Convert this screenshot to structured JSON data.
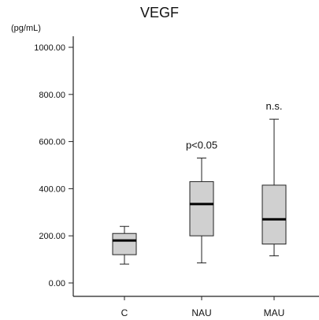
{
  "chart_data": {
    "type": "box",
    "title": "VEGF",
    "unit_label": "(pg/mL)",
    "ylim": [
      0,
      1000
    ],
    "yticks": [
      0,
      200,
      400,
      600,
      800,
      1000
    ],
    "ytick_labels": [
      "0.00",
      "200.00",
      "400.00",
      "600.00",
      "800.00",
      "1000.00"
    ],
    "categories": [
      "C",
      "NAU",
      "MAU"
    ],
    "boxes": [
      {
        "category": "C",
        "min": 80,
        "q1": 120,
        "median": 180,
        "q3": 210,
        "max": 240,
        "annotation": ""
      },
      {
        "category": "NAU",
        "min": 85,
        "q1": 200,
        "median": 335,
        "q3": 430,
        "max": 530,
        "annotation": "p<0.05"
      },
      {
        "category": "MAU",
        "min": 115,
        "q1": 165,
        "median": 270,
        "q3": 415,
        "max": 695,
        "annotation": "n.s."
      }
    ],
    "grid": false,
    "colors": {
      "box_fill": "#d0d0d0",
      "line": "#222222",
      "median": "#000000"
    }
  }
}
